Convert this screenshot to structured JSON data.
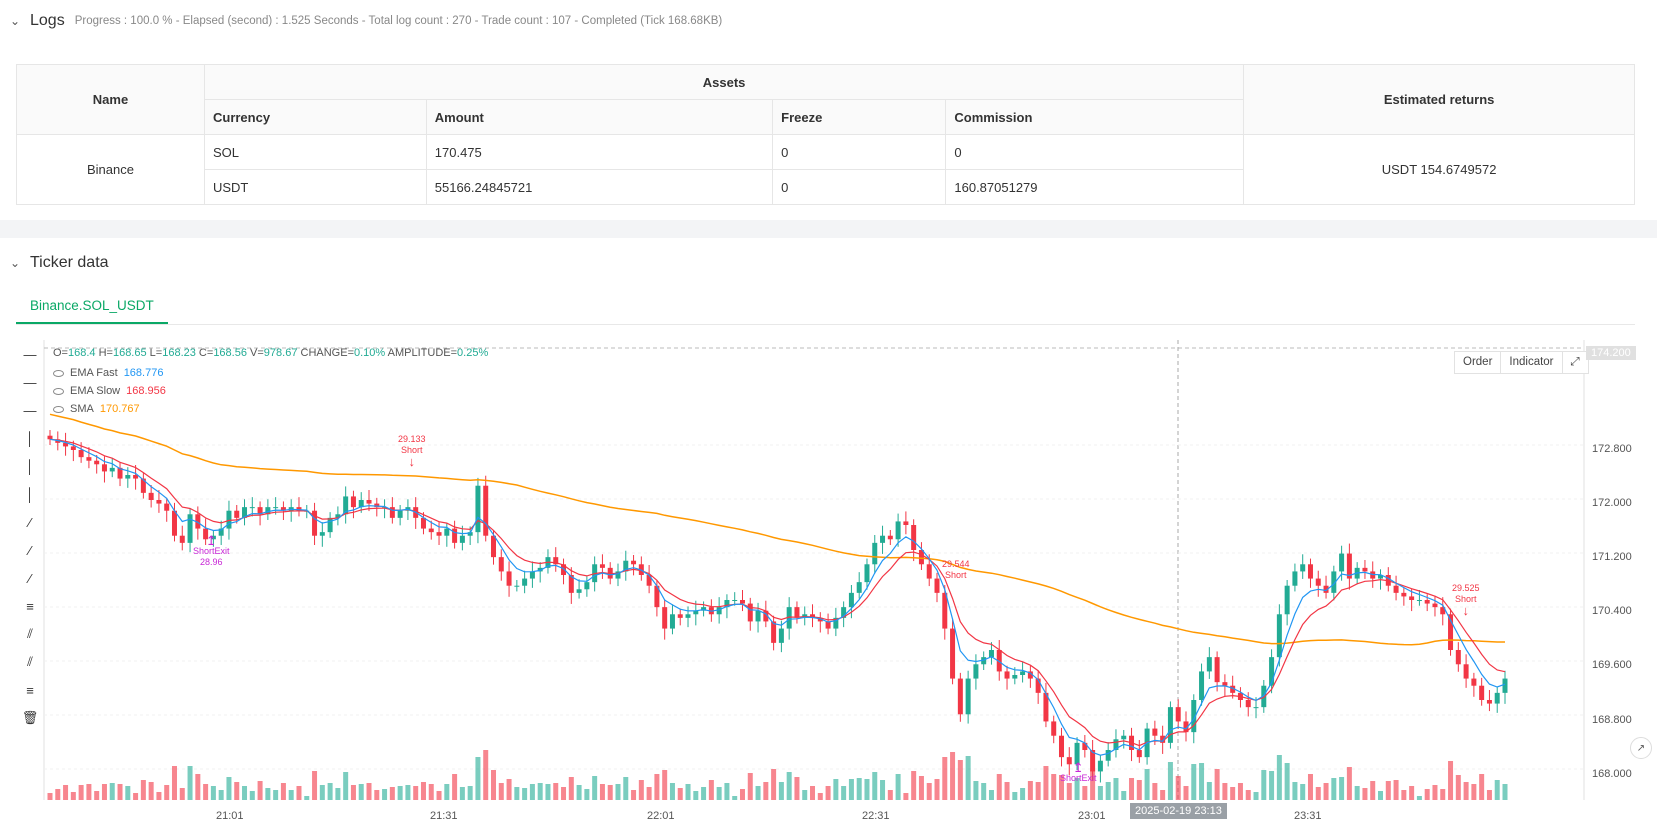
{
  "logs": {
    "title": "Logs",
    "meta": "Progress : 100.0 % - Elapsed (second) : 1.525  Seconds - Total log count : 270 - Trade count : 107 - Completed (Tick 168.68KB)"
  },
  "assets_table": {
    "name_header": "Name",
    "assets_header": "Assets",
    "returns_header": "Estimated returns",
    "columns": [
      "Currency",
      "Amount",
      "Freeze",
      "Commission"
    ],
    "exchange": "Binance",
    "rows": [
      {
        "currency": "SOL",
        "amount": "170.475",
        "freeze": "0",
        "commission": "0"
      },
      {
        "currency": "USDT",
        "amount": "55166.24845721",
        "freeze": "0",
        "commission": "160.87051279"
      }
    ],
    "estimated_returns": "USDT 154.6749572"
  },
  "ticker": {
    "title": "Ticker data",
    "tab": "Binance.SOL_USDT"
  },
  "chart": {
    "ohlc": {
      "o": "168.4",
      "h": "168.65",
      "l": "168.23",
      "c": "168.56",
      "v": "978.67",
      "change": "0.10%",
      "amplitude": "0.25%"
    },
    "legend": [
      {
        "name": "EMA Fast",
        "value": "168.776",
        "color": "#2196f3"
      },
      {
        "name": "EMA Slow",
        "value": "168.956",
        "color": "#f23645"
      },
      {
        "name": "SMA",
        "value": "170.767",
        "color": "#ff9800"
      }
    ],
    "buttons": [
      "Order",
      "Indicator"
    ],
    "price_tag": "174.200",
    "time_tag": "2025-02-19 23:13",
    "y_ticks": [
      "172.800",
      "172.000",
      "171.200",
      "170.400",
      "169.600",
      "168.800",
      "168.000"
    ],
    "x_ticks": [
      "21:01",
      "21:31",
      "22:01",
      "22:31",
      "23:01",
      "23:31"
    ],
    "annotations": [
      {
        "text1": "29.133",
        "text2": "Short"
      },
      {
        "text1": "ShortExit",
        "text2": "28.96"
      },
      {
        "text1": "29.544",
        "text2": "Short"
      },
      {
        "text1": "29.525",
        "text2": "Short"
      },
      {
        "text1": "ShortExit",
        "text2": ""
      }
    ],
    "colors": {
      "up": "#22ab94",
      "down": "#f23645",
      "ema_fast": "#2196f3",
      "ema_slow": "#f23645",
      "sma": "#ff9800",
      "signal": "#c826d6"
    }
  },
  "chart_data": {
    "type": "candlestick",
    "ylim": [
      167.9,
      174.2
    ],
    "closes": [
      172.95,
      172.9,
      172.85,
      172.8,
      172.7,
      172.65,
      172.6,
      172.5,
      172.55,
      172.4,
      172.45,
      172.4,
      172.2,
      172.1,
      172.05,
      171.95,
      171.6,
      171.5,
      171.9,
      171.7,
      171.55,
      171.6,
      171.7,
      171.95,
      171.85,
      172.0,
      172.0,
      171.9,
      172.0,
      172.0,
      171.95,
      172.0,
      171.95,
      171.95,
      171.6,
      171.65,
      171.85,
      171.9,
      172.15,
      172.0,
      172.1,
      172.05,
      172.0,
      172.0,
      171.85,
      171.95,
      172.0,
      171.85,
      171.7,
      171.65,
      171.6,
      171.7,
      171.5,
      171.6,
      171.65,
      172.3,
      171.6,
      171.3,
      171.1,
      170.9,
      170.9,
      171.0,
      171.1,
      171.15,
      171.3,
      171.2,
      171.05,
      170.8,
      170.85,
      170.95,
      171.2,
      171.15,
      171.0,
      171.1,
      171.25,
      171.2,
      171.05,
      170.9,
      170.6,
      170.3,
      170.5,
      170.45,
      170.5,
      170.55,
      170.6,
      170.5,
      170.6,
      170.7,
      170.7,
      170.65,
      170.4,
      170.55,
      170.4,
      170.1,
      170.3,
      170.6,
      170.45,
      170.5,
      170.45,
      170.4,
      170.3,
      170.45,
      170.6,
      170.8,
      170.95,
      171.2,
      171.5,
      171.6,
      171.55,
      171.8,
      171.75,
      171.4,
      171.2,
      171.0,
      170.8,
      170.3,
      169.6,
      169.1,
      169.6,
      169.8,
      169.9,
      170.0,
      169.7,
      169.6,
      169.65,
      169.7,
      169.6,
      169.4,
      169.0,
      168.8,
      168.5,
      168.4,
      168.7,
      168.6,
      168.3,
      168.45,
      168.6,
      168.75,
      168.8,
      168.6,
      168.5,
      168.9,
      168.8,
      168.7,
      169.2,
      169.0,
      168.85,
      169.3,
      169.7,
      169.9,
      169.55,
      169.5,
      169.4,
      169.3,
      169.2,
      169.2,
      169.5,
      169.9,
      170.5,
      170.9,
      171.1,
      171.2,
      171.0,
      170.9,
      170.8,
      171.1,
      171.35,
      171.0,
      171.15,
      171.1,
      171.0,
      171.05,
      170.9,
      170.8,
      170.75,
      170.7,
      170.7,
      170.65,
      170.6,
      170.5,
      170.0,
      169.8,
      169.6,
      169.5,
      169.3,
      169.25,
      169.4,
      169.6
    ],
    "series": [
      {
        "name": "EMA Fast"
      },
      {
        "name": "EMA Slow"
      },
      {
        "name": "SMA"
      }
    ]
  }
}
